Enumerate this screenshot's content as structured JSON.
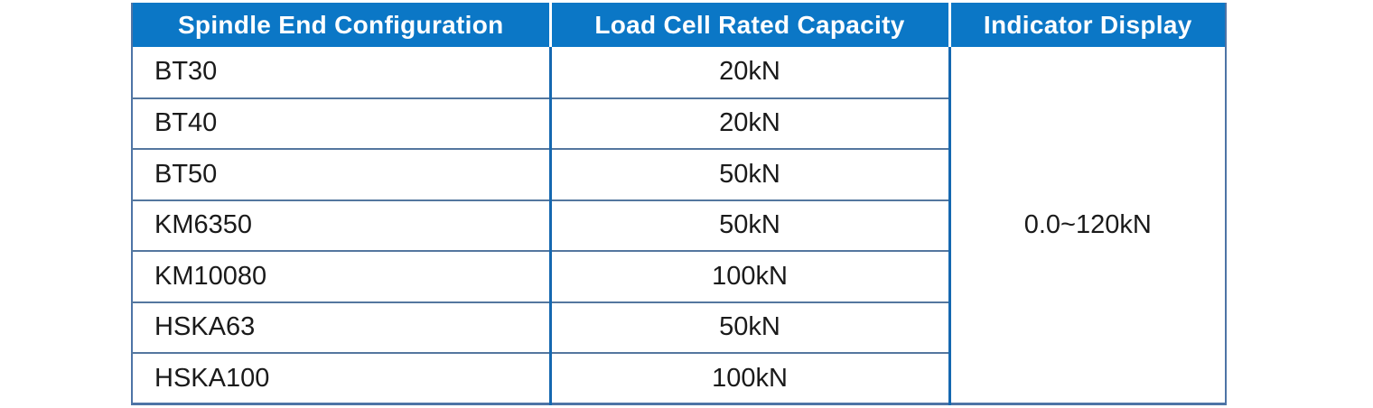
{
  "table": {
    "headers": [
      {
        "label": "Spindle End Configuration"
      },
      {
        "label": "Load Cell Rated Capacity"
      },
      {
        "label": "Indicator Display"
      }
    ],
    "rows": [
      {
        "spindle": "BT30",
        "capacity": "20kN"
      },
      {
        "spindle": "BT40",
        "capacity": "20kN"
      },
      {
        "spindle": "BT50",
        "capacity": "50kN"
      },
      {
        "spindle": "KM6350",
        "capacity": "50kN"
      },
      {
        "spindle": "KM10080",
        "capacity": "100kN"
      },
      {
        "spindle": "HSKA63",
        "capacity": "50kN"
      },
      {
        "spindle": "HSKA100",
        "capacity": "100kN"
      }
    ],
    "indicator_display": "0.0~120kN"
  },
  "colors": {
    "header_bg": "#0B77C6",
    "header_text": "#FFFFFF",
    "row_divider": "#54779F",
    "column_divider": "#1568B0",
    "outer_border": "#4E74A6",
    "body_text": "#1A1A1A"
  }
}
